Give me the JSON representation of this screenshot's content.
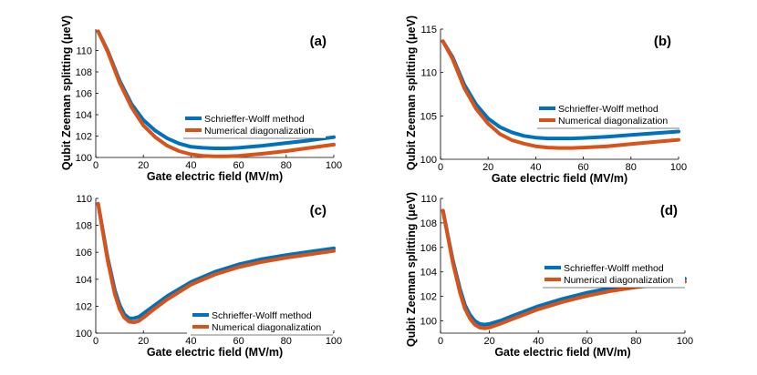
{
  "colors": {
    "schrieffer_wolff": "#0072BD",
    "numerical": "#D95319"
  },
  "chart_data": [
    {
      "type": "line",
      "panel_label": "(a)",
      "xlabel": "Gate electric field (MV/m)",
      "ylabel": "Qubit Zeeman splitting (μeV)",
      "xlim": [
        0,
        100
      ],
      "ylim": [
        100,
        112
      ],
      "xticks": [
        0,
        20,
        40,
        60,
        80,
        100
      ],
      "yticks": [
        100,
        102,
        104,
        106,
        108,
        110
      ],
      "legend_position": "center-right",
      "x": [
        1,
        5,
        10,
        15,
        20,
        25,
        30,
        35,
        40,
        45,
        50,
        55,
        60,
        70,
        80,
        90,
        100
      ],
      "series": [
        {
          "name": "Schrieffer-Wolff method",
          "values": [
            111.8,
            110.0,
            107.2,
            105.0,
            103.5,
            102.5,
            101.8,
            101.3,
            101.0,
            100.9,
            100.85,
            100.85,
            100.9,
            101.1,
            101.35,
            101.6,
            101.9
          ]
        },
        {
          "name": "Numerical diagonalization",
          "values": [
            111.8,
            109.9,
            107.0,
            104.7,
            103.0,
            101.9,
            101.1,
            100.6,
            100.3,
            100.15,
            100.1,
            100.1,
            100.15,
            100.35,
            100.6,
            100.9,
            101.2
          ]
        }
      ]
    },
    {
      "type": "line",
      "panel_label": "(b)",
      "xlabel": "Gate electric field (MV/m)",
      "ylabel": "Qubit Zeeman splitting (μeV)",
      "xlim": [
        0,
        100
      ],
      "ylim": [
        100,
        115
      ],
      "xticks": [
        0,
        20,
        40,
        60,
        80,
        100
      ],
      "yticks": [
        100,
        105,
        110,
        115
      ],
      "legend_position": "center-right",
      "x": [
        1,
        5,
        10,
        15,
        20,
        25,
        30,
        35,
        40,
        45,
        50,
        55,
        60,
        70,
        80,
        90,
        100
      ],
      "series": [
        {
          "name": "Schrieffer-Wolff method",
          "values": [
            113.6,
            111.8,
            108.6,
            106.3,
            104.7,
            103.7,
            103.1,
            102.7,
            102.5,
            102.4,
            102.4,
            102.4,
            102.45,
            102.6,
            102.8,
            103.0,
            103.2
          ]
        },
        {
          "name": "Numerical diagonalization",
          "values": [
            113.6,
            111.6,
            108.2,
            105.8,
            104.1,
            102.9,
            102.2,
            101.8,
            101.5,
            101.35,
            101.3,
            101.3,
            101.35,
            101.5,
            101.75,
            102.0,
            102.25
          ]
        }
      ]
    },
    {
      "type": "line",
      "panel_label": "(c)",
      "xlabel": "Gate electric field (MV/m)",
      "ylabel": "",
      "xlim": [
        0,
        100
      ],
      "ylim": [
        100,
        110
      ],
      "xticks": [
        0,
        20,
        40,
        60,
        80,
        100
      ],
      "yticks": [
        100,
        102,
        104,
        106,
        108,
        110
      ],
      "legend_position": "bottom-right",
      "x": [
        1,
        3,
        5,
        8,
        10,
        12,
        14,
        16,
        18,
        20,
        25,
        30,
        40,
        50,
        60,
        70,
        80,
        90,
        100
      ],
      "series": [
        {
          "name": "Schrieffer-Wolff method",
          "values": [
            109.6,
            107.6,
            105.6,
            103.2,
            102.1,
            101.4,
            101.1,
            101.1,
            101.2,
            101.45,
            102.1,
            102.75,
            103.8,
            104.55,
            105.1,
            105.5,
            105.8,
            106.05,
            106.3
          ]
        },
        {
          "name": "Numerical diagonalization",
          "values": [
            109.6,
            107.5,
            105.4,
            102.9,
            101.8,
            101.15,
            100.85,
            100.8,
            100.9,
            101.15,
            101.85,
            102.5,
            103.6,
            104.35,
            104.9,
            105.3,
            105.6,
            105.85,
            106.1
          ]
        }
      ]
    },
    {
      "type": "line",
      "panel_label": "(d)",
      "xlabel": "Gate electric field (MV/m)",
      "ylabel": "Qubit Zeeman splitting (μeV)",
      "xlim": [
        0,
        100
      ],
      "ylim": [
        99,
        110
      ],
      "xticks": [
        0,
        20,
        40,
        60,
        80,
        100
      ],
      "yticks": [
        100,
        102,
        104,
        106,
        108,
        110
      ],
      "legend_position": "bottom-right",
      "x": [
        1,
        3,
        5,
        8,
        10,
        12,
        14,
        16,
        18,
        20,
        25,
        30,
        40,
        50,
        60,
        70,
        80,
        90,
        100
      ],
      "series": [
        {
          "name": "Schrieffer-Wolff method",
          "values": [
            109.0,
            107.0,
            105.0,
            102.6,
            101.3,
            100.5,
            100.0,
            99.75,
            99.7,
            99.75,
            100.05,
            100.45,
            101.2,
            101.8,
            102.3,
            102.7,
            103.0,
            103.25,
            103.45
          ]
        },
        {
          "name": "Numerical diagonalization",
          "values": [
            109.0,
            106.9,
            104.8,
            102.3,
            101.0,
            100.2,
            99.7,
            99.45,
            99.4,
            99.45,
            99.8,
            100.2,
            100.95,
            101.55,
            102.05,
            102.45,
            102.75,
            103.0,
            103.2
          ]
        }
      ]
    }
  ]
}
